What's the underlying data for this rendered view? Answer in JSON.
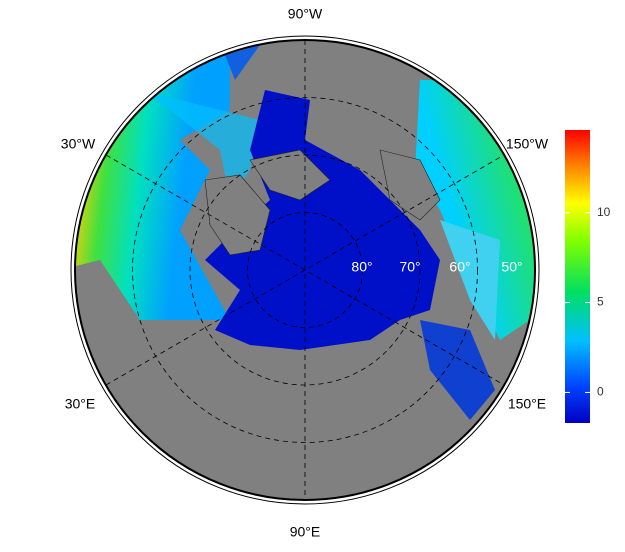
{
  "map": {
    "longitude_labels": [
      "90°W",
      "30°W",
      "150°W",
      "30°E",
      "150°E",
      "90°E"
    ],
    "latitude_labels": [
      "80°",
      "70°",
      "60°",
      "50°"
    ],
    "colorbar": {
      "lim": [
        -1.7,
        14.6
      ],
      "ticks": [
        0,
        5,
        10
      ]
    }
  }
}
